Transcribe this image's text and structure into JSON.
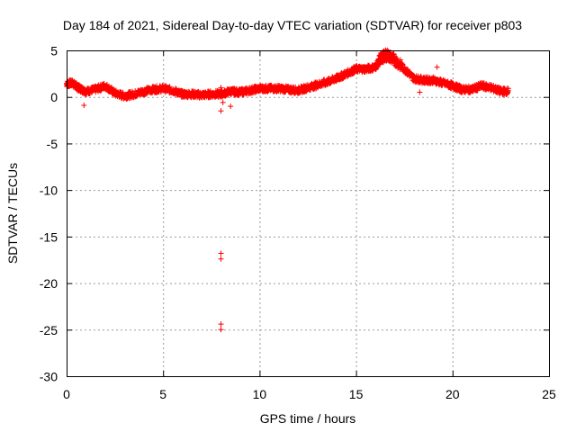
{
  "chart_data": {
    "type": "scatter",
    "title": "Day 184 of 2021, Sidereal Day-to-day VTEC variation (SDTVAR) for receiver p803",
    "xlabel": "GPS time / hours",
    "ylabel": "SDTVAR / TECUs",
    "xlim": [
      0,
      25
    ],
    "ylim": [
      -30,
      5
    ],
    "xticks": [
      0,
      5,
      10,
      15,
      20,
      25
    ],
    "yticks": [
      5,
      0,
      -5,
      -10,
      -15,
      -20,
      -25,
      -30
    ],
    "grid": true,
    "marker": "plus",
    "color": "#ff0000",
    "series": [
      {
        "name": "SDTVAR",
        "trace_x": [
          0.0,
          0.3,
          0.6,
          1.0,
          1.5,
          2.0,
          2.5,
          3.0,
          3.5,
          4.0,
          4.5,
          5.0,
          5.5,
          6.0,
          6.5,
          7.0,
          7.5,
          8.0,
          8.5,
          9.0,
          9.5,
          10.0,
          10.5,
          11.0,
          11.5,
          12.0,
          12.5,
          13.0,
          13.5,
          14.0,
          14.5,
          15.0,
          15.5,
          16.0,
          16.3,
          16.6,
          17.0,
          17.5,
          18.0,
          18.5,
          19.0,
          19.5,
          20.0,
          20.5,
          21.0,
          21.5,
          22.0,
          22.5,
          22.9
        ],
        "trace_y": [
          1.4,
          1.5,
          1.0,
          0.6,
          0.8,
          1.2,
          0.4,
          0.1,
          0.3,
          0.6,
          0.8,
          0.9,
          0.7,
          0.3,
          0.3,
          0.2,
          0.3,
          0.3,
          0.6,
          0.5,
          0.7,
          0.9,
          0.9,
          0.9,
          0.8,
          0.7,
          1.0,
          1.3,
          1.6,
          2.0,
          2.5,
          3.0,
          3.0,
          3.2,
          4.2,
          4.5,
          4.0,
          3.0,
          2.0,
          1.8,
          1.8,
          1.5,
          1.2,
          0.8,
          0.8,
          1.2,
          1.0,
          0.6,
          0.6
        ],
        "outliers_x": [
          0.9,
          8.0,
          8.0,
          8.0,
          8.0,
          8.0,
          8.0,
          8.1,
          8.5,
          18.3,
          19.2
        ],
        "outliers_y": [
          -0.9,
          1.0,
          -1.5,
          -16.8,
          -17.4,
          -24.4,
          -25.0,
          -0.6,
          -1.0,
          0.5,
          3.2
        ]
      }
    ]
  }
}
